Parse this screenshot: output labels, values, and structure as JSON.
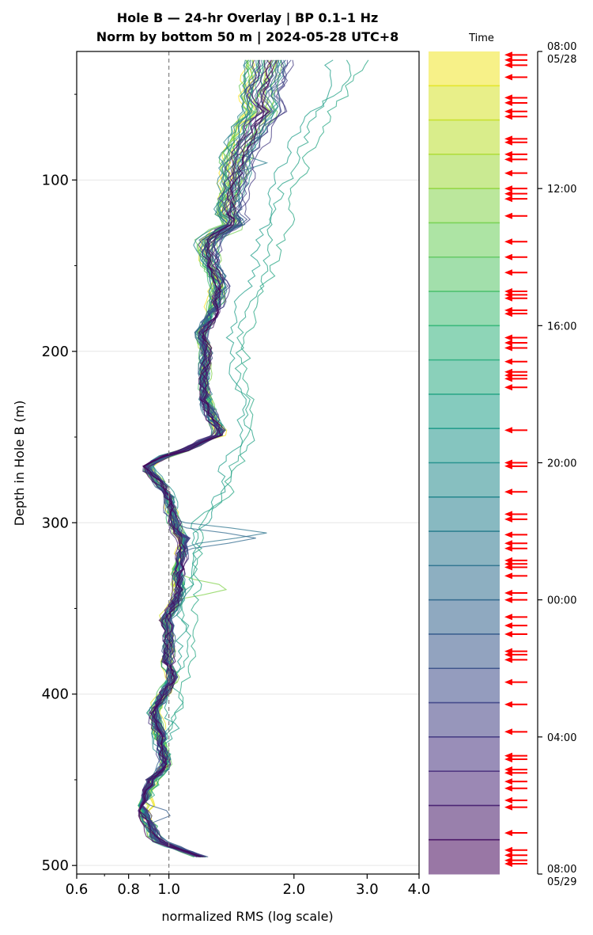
{
  "chart_data": {
    "type": "line",
    "title_line1": "Hole B — 24-hr Overlay  |  BP 0.1–1 Hz",
    "title_line2": "Norm by bottom 50 m  |  2024-05-28 UTC+8",
    "xlabel": "normalized RMS  (log scale)",
    "ylabel": "Depth in Hole B (m)",
    "x_scale": "log",
    "xlim": [
      0.6,
      4.0
    ],
    "ylim": [
      505,
      25
    ],
    "x_ticks": [
      {
        "value": 0.6,
        "label": "0.6"
      },
      {
        "value": 0.8,
        "label": "0.8"
      },
      {
        "value": 1.0,
        "label": "1.0"
      },
      {
        "value": 2.0,
        "label": "2.0"
      },
      {
        "value": 3.0,
        "label": "3.0"
      },
      {
        "value": 4.0,
        "label": "4.0"
      }
    ],
    "y_ticks": [
      {
        "value": 100,
        "label": "100"
      },
      {
        "value": 200,
        "label": "200"
      },
      {
        "value": 300,
        "label": "300"
      },
      {
        "value": 400,
        "label": "400"
      },
      {
        "value": 500,
        "label": "500"
      }
    ],
    "y_minor_ticks": [
      50,
      150,
      250,
      350,
      450
    ],
    "reference_line_x": 1.0,
    "grid": "horizontal",
    "series_count": 48,
    "base_profile": {
      "depth": [
        30,
        40,
        50,
        60,
        70,
        80,
        90,
        100,
        110,
        120,
        125,
        130,
        135,
        140,
        150,
        160,
        170,
        180,
        190,
        200,
        210,
        220,
        230,
        240,
        248,
        252,
        258,
        262,
        268,
        275,
        285,
        295,
        305,
        310,
        320,
        330,
        340,
        350,
        356,
        362,
        370,
        380,
        390,
        400,
        410,
        420,
        430,
        440,
        445,
        450,
        460,
        470,
        478,
        485,
        490,
        495
      ],
      "x": [
        1.7,
        1.68,
        1.62,
        1.66,
        1.55,
        1.48,
        1.44,
        1.43,
        1.4,
        1.38,
        1.45,
        1.32,
        1.25,
        1.24,
        1.26,
        1.32,
        1.3,
        1.26,
        1.19,
        1.23,
        1.22,
        1.21,
        1.23,
        1.28,
        1.34,
        1.22,
        1.08,
        0.95,
        0.88,
        0.94,
        1.0,
        1.02,
        1.04,
        1.1,
        1.07,
        1.05,
        1.06,
        1.02,
        0.98,
        1.0,
        1.0,
        0.99,
        1.02,
        0.97,
        0.92,
        0.94,
        0.96,
        0.98,
        0.96,
        0.91,
        0.89,
        0.88,
        0.91,
        0.93,
        1.05,
        1.2
      ]
    },
    "outliers": [
      {
        "series": 19,
        "depth": [
          30,
          60,
          100,
          140,
          200,
          250,
          300,
          350,
          400
        ],
        "x": [
          2.95,
          2.45,
          2.05,
          1.85,
          1.5,
          1.62,
          1.25,
          1.16,
          1.05
        ]
      },
      {
        "series": 20,
        "depth": [
          30,
          60,
          100,
          140,
          200,
          250,
          300,
          350,
          400
        ],
        "x": [
          2.75,
          2.3,
          1.9,
          1.7,
          1.45,
          1.55,
          1.2,
          1.12,
          1.04
        ]
      },
      {
        "series": 21,
        "depth": [
          30,
          60,
          100,
          140,
          200,
          250,
          300,
          350,
          400
        ],
        "x": [
          2.5,
          2.15,
          1.78,
          1.62,
          1.4,
          1.5,
          1.18,
          1.1,
          1.03
        ]
      }
    ],
    "spikes": [
      {
        "series": 29,
        "depth": 306,
        "x": 1.72
      },
      {
        "series": 31,
        "depth": 309,
        "x": 1.62
      },
      {
        "series": 9,
        "depth": 338,
        "x": 1.42
      },
      {
        "series": 10,
        "depth": 128,
        "x": 1.52
      },
      {
        "series": 27,
        "depth": 90,
        "x": 1.72
      },
      {
        "series": 33,
        "depth": 470,
        "x": 1.03
      }
    ],
    "colorbar": {
      "label": "Time",
      "ticks": [
        {
          "time_h": 0,
          "label": "08:00",
          "sublabel": "05/28"
        },
        {
          "time_h": 4,
          "label": "12:00",
          "sublabel": ""
        },
        {
          "time_h": 8,
          "label": "16:00",
          "sublabel": ""
        },
        {
          "time_h": 12,
          "label": "20:00",
          "sublabel": ""
        },
        {
          "time_h": 16,
          "label": "00:00",
          "sublabel": ""
        },
        {
          "time_h": 20,
          "label": "04:00",
          "sublabel": ""
        },
        {
          "time_h": 24,
          "label": "08:00",
          "sublabel": "05/29"
        }
      ],
      "band_count": 24,
      "colormap": [
        "#fde725",
        "#b5de2b",
        "#6ece58",
        "#35b779",
        "#1f9e89",
        "#26828e",
        "#31688e",
        "#3e4989",
        "#482878",
        "#440154"
      ],
      "event_marker_color": "#ff0000",
      "event_times_h": [
        0.1,
        0.25,
        0.4,
        0.75,
        1.35,
        1.5,
        1.75,
        1.9,
        2.55,
        2.65,
        3.0,
        3.15,
        3.55,
        4.0,
        4.15,
        4.3,
        4.8,
        5.55,
        6.0,
        6.45,
        7.0,
        7.1,
        7.2,
        7.55,
        7.65,
        8.35,
        8.5,
        8.65,
        9.05,
        9.35,
        9.45,
        9.55,
        9.8,
        11.05,
        12.0,
        12.1,
        12.85,
        13.5,
        13.65,
        14.1,
        14.35,
        14.5,
        14.85,
        14.95,
        15.05,
        15.3,
        15.8,
        16.0,
        16.5,
        16.75,
        17.0,
        17.5,
        17.6,
        17.75,
        18.4,
        19.05,
        19.85,
        20.55,
        20.65,
        20.95,
        21.05,
        21.3,
        21.5,
        21.85,
        22.05,
        22.8,
        23.3,
        23.45,
        23.6,
        23.7
      ]
    }
  }
}
